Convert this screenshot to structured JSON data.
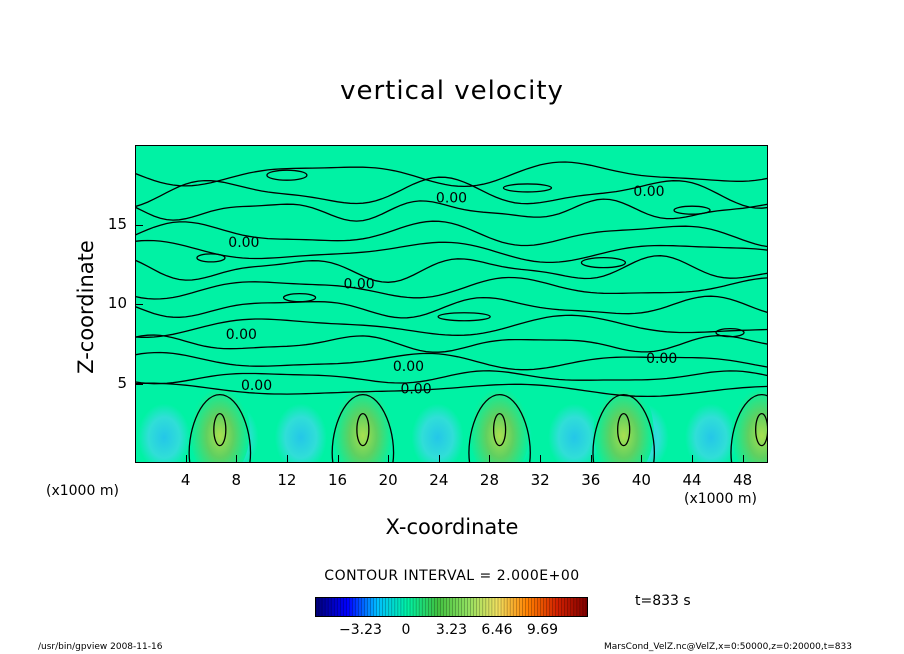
{
  "chart_data": {
    "type": "heatmap",
    "title": "vertical velocity",
    "xlabel": "X-coordinate",
    "ylabel": "Z-coordinate",
    "x_unit_label": "(x1000 m)",
    "xlim": [
      0,
      50
    ],
    "ylim": [
      0,
      20
    ],
    "x_ticks": [
      4,
      8,
      12,
      16,
      20,
      24,
      28,
      32,
      36,
      40,
      44,
      48
    ],
    "y_ticks": [
      5,
      10,
      15
    ],
    "contour_labels": [
      {
        "x": 25,
        "z": 16.7,
        "text": "0.00"
      },
      {
        "x": 40.6,
        "z": 17.1,
        "text": "0.00"
      },
      {
        "x": 8.6,
        "z": 13.9,
        "text": "0.00"
      },
      {
        "x": 17.7,
        "z": 11.3,
        "text": "0.00"
      },
      {
        "x": 8.4,
        "z": 8.1,
        "text": "0.00"
      },
      {
        "x": 21.6,
        "z": 6.1,
        "text": "0.00"
      },
      {
        "x": 41.6,
        "z": 6.6,
        "text": "0.00"
      },
      {
        "x": 22.2,
        "z": 4.7,
        "text": "0.00"
      },
      {
        "x": 9.6,
        "z": 4.9,
        "text": "0.00"
      }
    ],
    "updraft_centers_x": [
      6.7,
      18,
      28.8,
      38.6,
      49.5
    ],
    "contour_interval_text": "CONTOUR INTERVAL = 2.000E+00",
    "colorbar": {
      "ticks": [
        "−3.23",
        "0",
        "3.23",
        "6.46",
        "9.69"
      ],
      "tick_values": [
        -3.23,
        0,
        3.23,
        6.46,
        9.69
      ],
      "range": [
        -6.46,
        12.92
      ],
      "colors": [
        "#000080",
        "#0000ff",
        "#00bfff",
        "#00f2a4",
        "#40c040",
        "#90e060",
        "#f0e060",
        "#ff8000",
        "#d02000",
        "#800000"
      ]
    },
    "time_label": "t=833 s"
  },
  "footer": {
    "left": "/usr/bin/gpview   2008-11-16",
    "right": "MarsCond_VelZ.nc@VelZ,x=0:50000,z=0:20000,t=833"
  }
}
